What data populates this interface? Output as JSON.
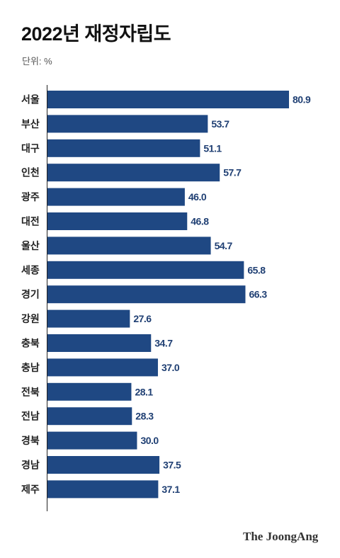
{
  "chart_data": {
    "type": "bar",
    "orientation": "horizontal",
    "title": "2022년 재정자립도",
    "unit": "단위: %",
    "categories": [
      "서울",
      "부산",
      "대구",
      "인천",
      "광주",
      "대전",
      "울산",
      "세종",
      "경기",
      "강원",
      "충북",
      "충남",
      "전북",
      "전남",
      "경북",
      "경남",
      "제주"
    ],
    "values": [
      80.9,
      53.7,
      51.1,
      57.7,
      46.0,
      46.8,
      54.7,
      65.8,
      66.3,
      27.6,
      34.7,
      37.0,
      28.1,
      28.3,
      30.0,
      37.5,
      37.1
    ],
    "value_labels": [
      "80.9",
      "53.7",
      "51.1",
      "57.7",
      "46.0",
      "46.8",
      "54.7",
      "65.8",
      "66.3",
      "27.6",
      "34.7",
      "37.0",
      "28.1",
      "28.3",
      "30.0",
      "37.5",
      "37.1"
    ],
    "xlim": [
      0,
      80.9
    ],
    "bar_color": "#1f4883",
    "grid": false
  },
  "branding": {
    "logo_text": "The JoongAng"
  }
}
